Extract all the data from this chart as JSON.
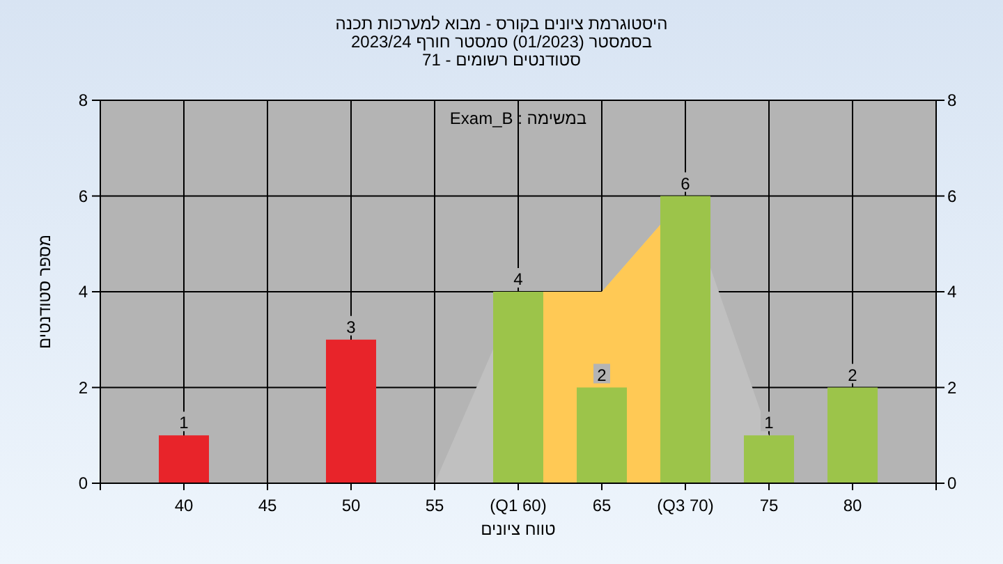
{
  "chart_data": {
    "type": "bar",
    "title": "היסטוגרמת ציונים בקורס - מבוא למערכות תכנה",
    "subtitle": "בסמסטר  (01/2023)  סמסטר חורף 2023/24\nסטודנטים רשומים - 71",
    "xlabel": "טווח ציונים",
    "ylabel": "מספר סטודנטים",
    "annotations": [
      "במשימה : Exam_B"
    ],
    "categories": [
      "40",
      "45",
      "50",
      "55",
      "(Q1 60)",
      "65",
      "(Q3 70)",
      "75",
      "80"
    ],
    "series": [
      {
        "type": "area",
        "color": "#c0c0c0",
        "values": [
          null,
          null,
          null,
          0,
          4,
          4,
          6,
          1,
          null
        ]
      },
      {
        "type": "area",
        "color": "#ffc955",
        "values": [
          null,
          null,
          null,
          null,
          4,
          4,
          6,
          null,
          null
        ]
      },
      {
        "type": "bar",
        "colors": [
          "#e8242a",
          "#e8242a",
          "#e8242a",
          "#e8242a",
          "#9cc44a",
          "#9cc44a",
          "#9cc44a",
          "#9cc44a",
          "#9cc44a"
        ],
        "values": [
          1,
          0,
          3,
          0,
          4,
          2,
          6,
          1,
          2
        ],
        "value_labels": [
          "1",
          null,
          "3",
          null,
          "4",
          "2",
          "6",
          "1",
          "2"
        ]
      }
    ],
    "ylim": [
      0,
      8
    ],
    "yticks": [
      0,
      2,
      4,
      6,
      8
    ],
    "y2lim": [
      0,
      8
    ],
    "y2ticks": [
      0,
      2,
      4,
      6,
      8
    ],
    "grid": true
  }
}
